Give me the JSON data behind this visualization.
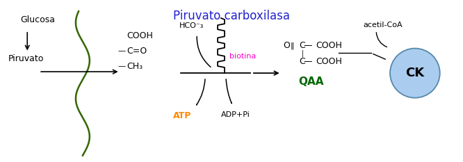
{
  "bg_color": "#ffffff",
  "title_text": "Piruvato carboxilasa",
  "title_color": "#2222cc",
  "glucosa_text": "Glucosa",
  "piruvato_text": "Piruvato",
  "hco3_text": "HCO⁻₃",
  "biotina_text": "biotina",
  "biotina_color": "#ff00cc",
  "atp_text": "ATP",
  "atp_color": "#ff8800",
  "adppi_text": "ADP+Pi",
  "qaa_text": "QAA",
  "qaa_color": "#006600",
  "acetilcoa_text": "acetil-CoA",
  "ck_text": "CK",
  "ck_circle_color": "#aaccee",
  "ck_edge_color": "#5588aa",
  "membrane_color": "#336600"
}
